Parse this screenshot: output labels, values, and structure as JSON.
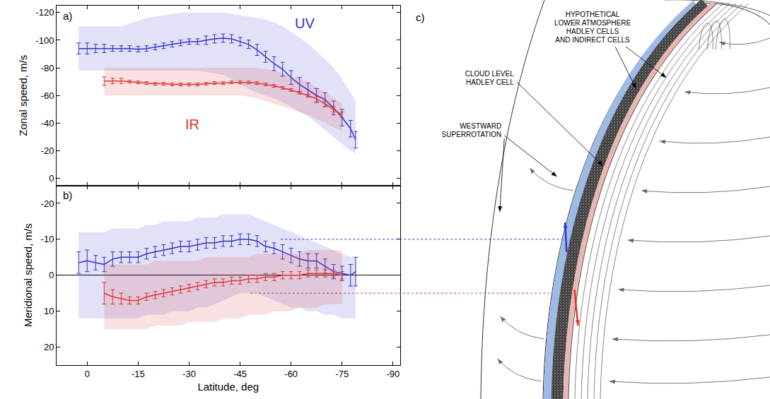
{
  "chart_data": [
    {
      "type": "line",
      "panel_label": "a)",
      "ylabel": "Zonal speed, m/s",
      "xlim": [
        9,
        -92
      ],
      "xticks": [
        0,
        -15,
        -30,
        -45,
        -60,
        -75,
        -90
      ],
      "ylim": [
        5,
        -125
      ],
      "yticks": [
        -120,
        -100,
        -80,
        -60,
        -40,
        -20,
        0
      ],
      "grid": false,
      "tick_labels": "y",
      "series": [
        {
          "name": "UV",
          "color": "#3333cc",
          "label_x": -64,
          "label_y": -112,
          "x": [
            2.5,
            0,
            -2.5,
            -5,
            -7.5,
            -10,
            -12.5,
            -15,
            -17.5,
            -20,
            -22.5,
            -25,
            -27.5,
            -30,
            -32.5,
            -35,
            -37.5,
            -40,
            -42.5,
            -45,
            -47.5,
            -50,
            -52.5,
            -55,
            -57.5,
            -60,
            -62.5,
            -65,
            -67.5,
            -70,
            -72.5,
            -75,
            -77.5,
            -79
          ],
          "values": [
            -94,
            -94,
            -94,
            -94,
            -94,
            -94,
            -94,
            -93.5,
            -94,
            -95,
            -96,
            -97,
            -98,
            -99,
            -99,
            -100,
            -101,
            -101.5,
            -101,
            -99,
            -97,
            -93,
            -88,
            -83,
            -79,
            -73,
            -68,
            -64,
            -60,
            -57,
            -51,
            -44,
            -36,
            -28
          ],
          "errors": [
            4,
            4,
            3,
            3,
            2,
            2,
            2,
            2,
            2,
            2,
            2,
            2,
            2,
            2,
            2,
            3,
            3,
            3,
            3,
            3,
            3,
            4,
            4,
            5,
            5,
            5,
            5,
            5,
            5,
            5,
            5,
            6,
            6,
            6
          ],
          "spread_low": [
            -78,
            -78,
            -78,
            -78,
            -78,
            -78,
            -78,
            -78,
            -78,
            -78,
            -78,
            -78,
            -78,
            -78,
            -78,
            -77,
            -76,
            -75,
            -72,
            -68,
            -65,
            -62,
            -60,
            -58,
            -55,
            -52,
            -48,
            -45,
            -40,
            -35,
            -30,
            -25,
            -20,
            -18
          ],
          "spread_high": [
            -110,
            -110,
            -110,
            -110,
            -110,
            -110,
            -112,
            -114,
            -116,
            -117,
            -118,
            -119,
            -120,
            -120,
            -120,
            -120,
            -120,
            -120,
            -119,
            -118,
            -117,
            -116,
            -115,
            -113,
            -110,
            -106,
            -102,
            -97,
            -92,
            -86,
            -80,
            -72,
            -62,
            -55
          ]
        },
        {
          "name": "IR",
          "color": "#e03535",
          "label_x": -31,
          "label_y": -39,
          "x": [
            -5,
            -7.5,
            -10,
            -12.5,
            -15,
            -17.5,
            -20,
            -22.5,
            -25,
            -27.5,
            -30,
            -32.5,
            -35,
            -37.5,
            -40,
            -42.5,
            -45,
            -47.5,
            -50,
            -52.5,
            -55,
            -57.5,
            -60,
            -62.5,
            -65,
            -67.5,
            -70,
            -72.5,
            -75
          ],
          "values": [
            -70.5,
            -70.5,
            -70.5,
            -70,
            -69.5,
            -69,
            -68.5,
            -68.5,
            -68,
            -68,
            -68,
            -68,
            -68.5,
            -69,
            -69,
            -69.5,
            -69.5,
            -69.5,
            -69,
            -68,
            -67,
            -65.5,
            -64,
            -62,
            -60,
            -57.5,
            -54,
            -50,
            -46
          ],
          "errors": [
            3,
            2,
            2,
            1,
            1,
            1,
            1,
            1,
            1,
            1,
            1,
            1,
            1,
            1,
            1,
            1,
            1,
            1,
            1,
            1,
            1,
            1,
            1,
            1,
            1,
            2,
            2,
            2,
            2
          ],
          "spread_low": [
            -60,
            -60,
            -60,
            -60,
            -60,
            -60,
            -60,
            -60,
            -60,
            -60,
            -60,
            -60,
            -60,
            -60,
            -60,
            -60,
            -60,
            -59,
            -58,
            -56,
            -54,
            -52,
            -50,
            -48,
            -46,
            -43,
            -40,
            -37,
            -34
          ],
          "spread_high": [
            -80,
            -80,
            -80,
            -80,
            -80,
            -80,
            -80,
            -80,
            -80,
            -80,
            -80,
            -80,
            -80,
            -80,
            -80,
            -80,
            -80,
            -80,
            -80,
            -79,
            -78,
            -76,
            -74,
            -72,
            -70,
            -66,
            -62,
            -58,
            -54
          ]
        }
      ]
    },
    {
      "type": "line",
      "panel_label": "b)",
      "xlabel": "Latitude, deg",
      "ylabel": "Meridional speed, m/s",
      "xlim": [
        9,
        -92
      ],
      "xticks": [
        0,
        -15,
        -30,
        -45,
        -60,
        -75,
        -90
      ],
      "ylim": [
        25,
        -25
      ],
      "yticks": [
        -20,
        -10,
        0,
        10,
        20
      ],
      "grid": false,
      "series": [
        {
          "color": "#3333cc",
          "pointer": {
            "x": -57,
            "y": -10
          },
          "x": [
            2.5,
            0,
            -2.5,
            -5,
            -7.5,
            -10,
            -12.5,
            -15,
            -17.5,
            -20,
            -22.5,
            -25,
            -27.5,
            -30,
            -32.5,
            -35,
            -37.5,
            -40,
            -42.5,
            -45,
            -47.5,
            -50,
            -52.5,
            -55,
            -57.5,
            -60,
            -62.5,
            -65,
            -67.5,
            -70,
            -72.5,
            -75,
            -77.5,
            -79
          ],
          "values": [
            -3.5,
            -4,
            -3.5,
            -3,
            -4.5,
            -5,
            -5,
            -5,
            -6,
            -6.5,
            -7,
            -7.5,
            -8,
            -8,
            -8.5,
            -9,
            -9,
            -9.5,
            -9.5,
            -10,
            -10,
            -9.5,
            -8,
            -7.5,
            -6.5,
            -5.5,
            -4.5,
            -4,
            -4,
            -2.5,
            -1,
            -0.5,
            0,
            -1
          ],
          "errors": [
            3,
            3,
            2,
            2,
            2,
            1.5,
            1.5,
            1.5,
            1.5,
            1.5,
            1.5,
            1.5,
            1.5,
            1.5,
            1.5,
            1.5,
            1.5,
            1.5,
            1.5,
            1.5,
            1.5,
            1.5,
            1.5,
            1.5,
            2,
            2,
            2,
            2,
            2,
            2,
            2,
            2,
            3,
            4
          ],
          "spread_low": [
            12,
            12,
            12,
            12,
            12,
            12,
            12,
            12,
            11,
            11,
            11,
            10,
            10,
            10,
            9,
            9,
            8,
            7,
            6,
            5,
            5,
            5,
            6,
            7,
            8,
            9,
            9,
            10,
            10,
            11,
            11,
            12,
            12,
            12
          ],
          "spread_high": [
            -12,
            -12,
            -12,
            -12,
            -13,
            -13,
            -13,
            -13,
            -14,
            -14,
            -15,
            -15,
            -15,
            -15,
            -16,
            -16,
            -16,
            -17,
            -17,
            -17,
            -17,
            -16,
            -15,
            -14,
            -13,
            -12,
            -11,
            -10,
            -9,
            -8,
            -7,
            -6,
            -5,
            -5
          ]
        },
        {
          "color": "#e03535",
          "pointer": {
            "x": -48,
            "y": 5
          },
          "x": [
            -5,
            -7.5,
            -10,
            -12.5,
            -15,
            -17.5,
            -20,
            -22.5,
            -25,
            -27.5,
            -30,
            -32.5,
            -35,
            -37.5,
            -40,
            -42.5,
            -45,
            -47.5,
            -50,
            -52.5,
            -55,
            -57.5,
            -60,
            -62.5,
            -65,
            -67.5,
            -70,
            -72.5,
            -75
          ],
          "values": [
            5,
            6,
            6.5,
            7,
            7,
            6,
            5.5,
            5,
            4.5,
            4,
            3.5,
            3,
            2.5,
            2,
            2,
            1.5,
            1.5,
            1,
            1,
            0.5,
            0.5,
            0,
            0,
            0,
            -0.5,
            -0.5,
            -0.5,
            -0.5,
            0
          ],
          "errors": [
            3,
            2,
            1.5,
            1,
            1,
            1,
            1,
            1,
            1,
            1,
            1,
            1,
            1,
            1,
            1,
            1,
            1,
            1,
            1,
            1,
            1,
            1,
            1,
            1,
            1,
            1,
            1,
            1,
            1
          ],
          "spread_low": [
            15,
            15,
            15,
            15,
            15,
            15,
            14,
            14,
            14,
            14,
            13,
            13,
            13,
            13,
            12,
            12,
            12,
            11,
            11,
            11,
            10,
            10,
            10,
            9,
            9,
            9,
            8,
            8,
            8
          ],
          "spread_high": [
            -3,
            -3,
            -3,
            -3,
            -3,
            -3,
            -4,
            -4,
            -4,
            -4,
            -4,
            -4,
            -5,
            -5,
            -5,
            -5,
            -5,
            -5,
            -6,
            -6,
            -6,
            -6,
            -6,
            -6,
            -7,
            -7,
            -7,
            -7,
            -7
          ]
        }
      ]
    }
  ],
  "diagram": {
    "label": "c)",
    "labels": [
      {
        "lines": [
          "HYPOTHETICAL",
          "LOWER ATMOSPHERE",
          "HADLEY CELLS",
          "AND INDIRECT CELLS"
        ]
      },
      {
        "lines": [
          "CLOUD LEVEL",
          "HADLEY CELL"
        ]
      },
      {
        "lines": [
          "WESTWARD",
          "SUPERROTATION"
        ]
      }
    ]
  }
}
